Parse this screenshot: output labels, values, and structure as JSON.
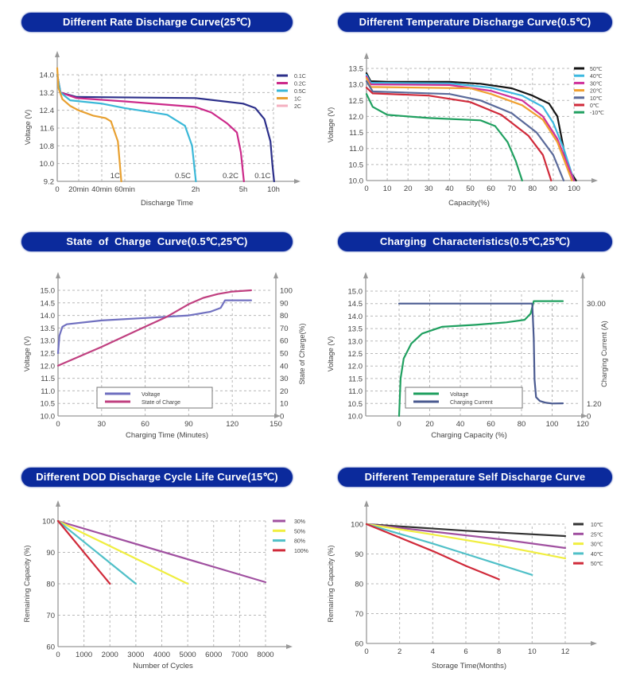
{
  "chart_data": [
    {
      "type": "line",
      "title": "Different Rate Discharge Curve(25℃)",
      "xlabel": "Discharge Time",
      "ylabel": "Voltage (V)",
      "ylim": [
        9.2,
        14.0
      ],
      "grid": true,
      "legend": {
        "position": "right"
      },
      "xticks": [
        {
          "value": 0,
          "label": "0"
        },
        {
          "value": 0.3333,
          "label": "20min"
        },
        {
          "value": 0.6667,
          "label": "40min"
        },
        {
          "value": 1,
          "label": "60min"
        },
        {
          "value": 2,
          "label": "2h"
        },
        {
          "value": 5,
          "label": "5h"
        },
        {
          "value": 10,
          "label": "10h"
        }
      ],
      "yticks": [
        "9.2",
        "10.0",
        "10.8",
        "11.6",
        "12.4",
        "13.2",
        "14.0"
      ],
      "series": [
        {
          "name": "0.1C",
          "color": "#2c2f8a",
          "points": [
            [
              0,
              14.0
            ],
            [
              0.05,
              13.2
            ],
            [
              0.3,
              13.0
            ],
            [
              2,
              12.95
            ],
            [
              5,
              12.7
            ],
            [
              7,
              12.5
            ],
            [
              8.5,
              12.0
            ],
            [
              9.5,
              11.0
            ],
            [
              9.8,
              10.0
            ],
            [
              10.1,
              9.2
            ]
          ]
        },
        {
          "name": "0.2C",
          "color": "#cc2a8a",
          "points": [
            [
              0,
              14.0
            ],
            [
              0.05,
              13.2
            ],
            [
              0.3,
              12.95
            ],
            [
              1,
              12.8
            ],
            [
              2,
              12.55
            ],
            [
              3,
              12.3
            ],
            [
              4,
              11.8
            ],
            [
              4.6,
              11.4
            ],
            [
              4.85,
              10.5
            ],
            [
              5.1,
              9.2
            ]
          ]
        },
        {
          "name": "0.5C",
          "color": "#3ab8d8",
          "points": [
            [
              0,
              14.0
            ],
            [
              0.05,
              13.2
            ],
            [
              0.2,
              12.85
            ],
            [
              0.67,
              12.7
            ],
            [
              1.0,
              12.5
            ],
            [
              1.3,
              12.35
            ],
            [
              1.6,
              12.2
            ],
            [
              1.85,
              11.7
            ],
            [
              1.95,
              10.8
            ],
            [
              2.02,
              9.2
            ]
          ]
        },
        {
          "name": "1C",
          "color": "#e8a030",
          "points": [
            [
              0,
              14.3
            ],
            [
              0.02,
              13.4
            ],
            [
              0.08,
              12.9
            ],
            [
              0.2,
              12.6
            ],
            [
              0.33,
              12.4
            ],
            [
              0.55,
              12.15
            ],
            [
              0.72,
              12.05
            ],
            [
              0.8,
              11.9
            ],
            [
              0.9,
              11.0
            ],
            [
              0.95,
              9.2
            ]
          ]
        },
        {
          "name": "2C",
          "color": "#f4b0c0",
          "points": []
        }
      ],
      "annotations": [
        {
          "text": "1C",
          "x": 0.86,
          "y": 9.35
        },
        {
          "text": "0.5C",
          "x": 1.82,
          "y": 9.35
        },
        {
          "text": "0.2C",
          "x": 4.2,
          "y": 9.35
        },
        {
          "text": "0.1C",
          "x": 8.2,
          "y": 9.35
        }
      ]
    },
    {
      "type": "line",
      "title": "Different Temperature Discharge Curve(0.5℃)",
      "xlabel": "Capacity(%)",
      "ylabel": "Voltage (V)",
      "xlim": [
        0,
        100
      ],
      "ylim": [
        10.0,
        13.5
      ],
      "grid": true,
      "legend": {
        "position": "right"
      },
      "xticks": [
        "0",
        "10",
        "20",
        "30",
        "40",
        "50",
        "60",
        "70",
        "80",
        "90",
        "100"
      ],
      "yticks": [
        "10.0",
        "10.5",
        "11.0",
        "11.5",
        "12.0",
        "12.5",
        "13.0",
        "13.5"
      ],
      "series": [
        {
          "name": "50℃",
          "color": "#151515",
          "points": [
            [
              0,
              13.35
            ],
            [
              2,
              13.1
            ],
            [
              10,
              13.08
            ],
            [
              40,
              13.08
            ],
            [
              55,
              13.02
            ],
            [
              70,
              12.88
            ],
            [
              80,
              12.65
            ],
            [
              88,
              12.4
            ],
            [
              92,
              12.0
            ],
            [
              95,
              11.0
            ],
            [
              98,
              10.3
            ],
            [
              101,
              10.0
            ]
          ]
        },
        {
          "name": "40℃",
          "color": "#3cb8e0",
          "points": [
            [
              0,
              13.3
            ],
            [
              2,
              13.05
            ],
            [
              40,
              13.03
            ],
            [
              60,
              12.9
            ],
            [
              75,
              12.65
            ],
            [
              85,
              12.3
            ],
            [
              90,
              11.8
            ],
            [
              95,
              11.0
            ],
            [
              100,
              10.0
            ]
          ]
        },
        {
          "name": "30℃",
          "color": "#d0309a",
          "points": [
            [
              0,
              13.25
            ],
            [
              2,
              13.0
            ],
            [
              40,
              12.98
            ],
            [
              60,
              12.8
            ],
            [
              75,
              12.5
            ],
            [
              85,
              12.0
            ],
            [
              92,
              11.3
            ],
            [
              100,
              10.0
            ]
          ]
        },
        {
          "name": "20℃",
          "color": "#f0a030",
          "points": [
            [
              0,
              13.2
            ],
            [
              2,
              12.92
            ],
            [
              50,
              12.88
            ],
            [
              60,
              12.7
            ],
            [
              75,
              12.35
            ],
            [
              85,
              11.9
            ],
            [
              92,
              11.2
            ],
            [
              99,
              10.0
            ]
          ]
        },
        {
          "name": "10℃",
          "color": "#5a6a9a",
          "points": [
            [
              0,
              13.1
            ],
            [
              3,
              12.78
            ],
            [
              40,
              12.7
            ],
            [
              55,
              12.5
            ],
            [
              70,
              12.1
            ],
            [
              82,
              11.5
            ],
            [
              90,
              10.8
            ],
            [
              95,
              10.0
            ]
          ]
        },
        {
          "name": "0℃",
          "color": "#d02a3a",
          "points": [
            [
              0,
              12.9
            ],
            [
              3,
              12.72
            ],
            [
              30,
              12.65
            ],
            [
              50,
              12.45
            ],
            [
              65,
              12.05
            ],
            [
              78,
              11.4
            ],
            [
              85,
              10.8
            ],
            [
              89,
              10.0
            ]
          ]
        },
        {
          "name": "-10℃",
          "color": "#20a060",
          "points": [
            [
              0,
              12.7
            ],
            [
              3,
              12.3
            ],
            [
              10,
              12.05
            ],
            [
              30,
              11.95
            ],
            [
              55,
              11.88
            ],
            [
              62,
              11.7
            ],
            [
              68,
              11.2
            ],
            [
              72,
              10.6
            ],
            [
              75,
              10.0
            ]
          ]
        }
      ]
    },
    {
      "type": "line",
      "title": "State  of  Charge  Curve(0.5℃,25℃)",
      "xlabel": "Charging Time (Minutes)",
      "ylabel": "Voltage (V)",
      "y2label": "State of Charge(%)",
      "xlim": [
        0,
        150
      ],
      "ylim": [
        10.0,
        15.0
      ],
      "y2lim": [
        0,
        100
      ],
      "grid": true,
      "legend": {
        "position": "bottom-center"
      },
      "xticks": [
        "0",
        "30",
        "60",
        "90",
        "120",
        "150"
      ],
      "yticks": [
        "10.0",
        "10.5",
        "11.0",
        "11.5",
        "12.0",
        "12.5",
        "13.0",
        "13.5",
        "14.0",
        "14.5",
        "15.0"
      ],
      "y2ticks": [
        "0",
        "10",
        "20",
        "30",
        "40",
        "50",
        "60",
        "70",
        "80",
        "90",
        "100"
      ],
      "series": [
        {
          "name": "Voltage",
          "color": "#7070c0",
          "axis": "y",
          "points": [
            [
              0,
              12.5
            ],
            [
              1,
              13.2
            ],
            [
              3,
              13.55
            ],
            [
              6,
              13.65
            ],
            [
              30,
              13.8
            ],
            [
              60,
              13.9
            ],
            [
              90,
              14.0
            ],
            [
              105,
              14.15
            ],
            [
              112,
              14.3
            ],
            [
              115,
              14.6
            ],
            [
              133,
              14.6
            ]
          ]
        },
        {
          "name": "State of Charge",
          "color": "#c04080",
          "axis": "y2",
          "points": [
            [
              0,
              40
            ],
            [
              30,
              55
            ],
            [
              60,
              71
            ],
            [
              75,
              79
            ],
            [
              90,
              89
            ],
            [
              100,
              94
            ],
            [
              110,
              97
            ],
            [
              120,
              99
            ],
            [
              133,
              100
            ]
          ]
        }
      ]
    },
    {
      "type": "line",
      "title": "Charging  Characteristics(0.5℃,25℃)",
      "xlabel": "Charging Capacity (%)",
      "ylabel": "Voltage (V)",
      "y2label": "Charging Current (A)",
      "xlim": [
        -20,
        120
      ],
      "ylim": [
        10.0,
        15.0
      ],
      "grid": true,
      "legend": {
        "position": "bottom-center"
      },
      "xticks": [
        "0",
        "20",
        "40",
        "60",
        "80",
        "100",
        "120"
      ],
      "yticks": [
        "10.0",
        "10.5",
        "11.0",
        "11.5",
        "12.0",
        "12.5",
        "13.0",
        "13.5",
        "14.0",
        "14.5",
        "15.0"
      ],
      "y2ticks": [
        {
          "value": 0,
          "label": "0"
        },
        {
          "value": 1.2,
          "label": "1.20"
        },
        {
          "value": 30,
          "label": "30.00"
        }
      ],
      "series": [
        {
          "name": "Voltage",
          "color": "#20a060",
          "axis": "y",
          "points": [
            [
              0,
              10.0
            ],
            [
              1,
              11.5
            ],
            [
              3,
              12.3
            ],
            [
              8,
              12.9
            ],
            [
              15,
              13.3
            ],
            [
              28,
              13.57
            ],
            [
              50,
              13.65
            ],
            [
              70,
              13.75
            ],
            [
              82,
              13.85
            ],
            [
              86,
              14.1
            ],
            [
              88,
              14.6
            ],
            [
              107,
              14.6
            ]
          ]
        },
        {
          "name": "Charging Current",
          "color": "#4a5a90",
          "axis": "y2",
          "points": [
            [
              0,
              30
            ],
            [
              87,
              30
            ],
            [
              88,
              20
            ],
            [
              88.5,
              8
            ],
            [
              89.5,
              3
            ],
            [
              92,
              1.9
            ],
            [
              96,
              1.4
            ],
            [
              100,
              1.2
            ],
            [
              107,
              1.25
            ]
          ]
        }
      ]
    },
    {
      "type": "line",
      "title": "Different DOD Discharge Cycle Life Curve(15℃)",
      "xlabel": "Number of Cycles",
      "ylabel": "Remaining Capacity (%)",
      "xlim": [
        0,
        8000
      ],
      "ylim": [
        60,
        100
      ],
      "grid": true,
      "legend": {
        "position": "right"
      },
      "xticks": [
        "0",
        "1000",
        "2000",
        "3000",
        "4000",
        "5000",
        "6000",
        "7000",
        "8000"
      ],
      "yticks": [
        "60",
        "70",
        "80",
        "90",
        "100"
      ],
      "series": [
        {
          "name": "30%",
          "color": "#a050a0",
          "points": [
            [
              0,
              100
            ],
            [
              8000,
              80.5
            ]
          ]
        },
        {
          "name": "50%",
          "color": "#f0ee40",
          "points": [
            [
              0,
              100
            ],
            [
              5000,
              80
            ]
          ]
        },
        {
          "name": "80%",
          "color": "#50c0c8",
          "points": [
            [
              0,
              100
            ],
            [
              3000,
              80
            ]
          ]
        },
        {
          "name": "100%",
          "color": "#d02a3a",
          "points": [
            [
              0,
              100
            ],
            [
              2000,
              80
            ]
          ]
        }
      ]
    },
    {
      "type": "line",
      "title": "Different Temperature Self Discharge Curve",
      "xlabel": "Storage Time(Months)",
      "ylabel": "Remaining Capacity (%)",
      "xlim": [
        0,
        12
      ],
      "ylim": [
        60,
        100
      ],
      "grid": true,
      "legend": {
        "position": "right"
      },
      "xticks": [
        "0",
        "2",
        "4",
        "6",
        "8",
        "10",
        "12"
      ],
      "yticks": [
        "60",
        "70",
        "80",
        "90",
        "100"
      ],
      "series": [
        {
          "name": "10℃",
          "color": "#333333",
          "points": [
            [
              0,
              100
            ],
            [
              6,
              97.8
            ],
            [
              12,
              96
            ]
          ]
        },
        {
          "name": "25℃",
          "color": "#a050a0",
          "points": [
            [
              0,
              100
            ],
            [
              4,
              97.5
            ],
            [
              8,
              95
            ],
            [
              12,
              92
            ]
          ]
        },
        {
          "name": "30℃",
          "color": "#f0ee40",
          "points": [
            [
              0,
              100
            ],
            [
              4,
              96.5
            ],
            [
              8,
              92.8
            ],
            [
              12,
              88.5
            ]
          ]
        },
        {
          "name": "40℃",
          "color": "#50c0c8",
          "points": [
            [
              0,
              100
            ],
            [
              4,
              93.5
            ],
            [
              6,
              90
            ],
            [
              10,
              83
            ]
          ]
        },
        {
          "name": "50℃",
          "color": "#d02a3a",
          "points": [
            [
              0,
              100
            ],
            [
              2,
              95.5
            ],
            [
              4,
              91
            ],
            [
              6,
              86
            ],
            [
              8,
              81.5
            ]
          ]
        }
      ]
    }
  ]
}
